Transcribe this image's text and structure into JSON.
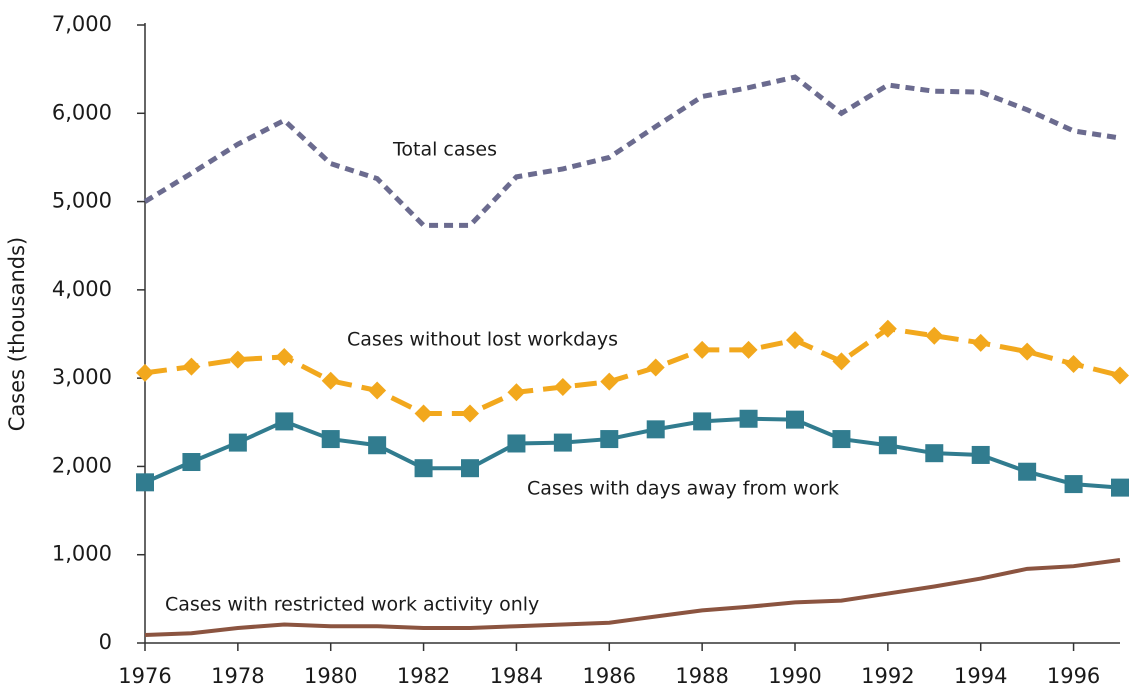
{
  "chart_data": {
    "type": "line",
    "y_label": "Cases (thousands)",
    "x": [
      1976,
      1977,
      1978,
      1979,
      1980,
      1981,
      1982,
      1983,
      1984,
      1985,
      1986,
      1987,
      1988,
      1989,
      1990,
      1991,
      1992,
      1993,
      1994,
      1995,
      1996,
      1997
    ],
    "xlim": [
      1976,
      1997
    ],
    "xticks": [
      1976,
      1978,
      1980,
      1982,
      1984,
      1986,
      1988,
      1990,
      1992,
      1994,
      1996
    ],
    "ylim": [
      0,
      7000
    ],
    "yticks": [
      0,
      {
        "value": 1000,
        "label": "1,000"
      },
      {
        "value": 2000,
        "label": "2,000"
      },
      {
        "value": 3000,
        "label": "3,000"
      },
      {
        "value": 4000,
        "label": "4,000"
      },
      {
        "value": 5000,
        "label": "5,000"
      },
      {
        "value": 6000,
        "label": "6,000"
      },
      {
        "value": 7000,
        "label": "7,000"
      }
    ],
    "series": [
      {
        "name": "Total cases",
        "color": "#6b6b8f",
        "line_style": "dotted",
        "marker": "none",
        "values": [
          5000,
          5320,
          5650,
          5920,
          5430,
          5260,
          4730,
          4730,
          5280,
          5370,
          5500,
          5850,
          6190,
          6290,
          6410,
          6000,
          6320,
          6250,
          6240,
          6040,
          5800,
          5720
        ]
      },
      {
        "name": "Cases without lost workdays",
        "color": "#f2a81d",
        "line_style": "dashed",
        "marker": "diamond",
        "values": [
          3060,
          3130,
          3210,
          3240,
          2970,
          2860,
          2600,
          2600,
          2840,
          2900,
          2960,
          3120,
          3320,
          3320,
          3430,
          3190,
          3560,
          3480,
          3400,
          3300,
          3160,
          3030
        ]
      },
      {
        "name": "Cases with days away from work",
        "color": "#317c8f",
        "line_style": "solid",
        "marker": "square",
        "values": [
          1820,
          2050,
          2270,
          2510,
          2310,
          2240,
          1980,
          1980,
          2260,
          2270,
          2310,
          2420,
          2510,
          2540,
          2530,
          2310,
          2240,
          2150,
          2130,
          1940,
          1800,
          1760
        ]
      },
      {
        "name": "Cases with restricted work activity only",
        "color": "#8b5440",
        "line_style": "solid",
        "marker": "none",
        "values": [
          90,
          110,
          170,
          210,
          190,
          190,
          170,
          170,
          190,
          210,
          230,
          300,
          370,
          410,
          460,
          480,
          560,
          640,
          730,
          840,
          870,
          940
        ]
      }
    ]
  }
}
